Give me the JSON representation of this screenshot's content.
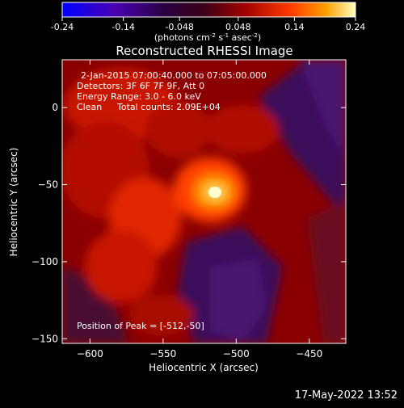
{
  "colorbar": {
    "min": -0.24,
    "max": 0.24,
    "tick_labels": [
      "-0.24",
      "-0.14",
      "-0.048",
      "0.048",
      "0.14",
      "0.24"
    ],
    "tick_values": [
      -0.24,
      -0.14,
      -0.048,
      0.048,
      0.14,
      0.24
    ],
    "unit_label": "(photons cm",
    "unit_exp1": "-2",
    "unit_mid": " s",
    "unit_exp2": "-1",
    "unit_mid2": " asec",
    "unit_exp3": "-2",
    "unit_end": ")"
  },
  "info": {
    "time_range": "2-Jan-2015 07:00:40.000 to 07:05:00.000",
    "detectors": "Detectors: 3F 6F 7F 9F, Att 0",
    "energy": "Energy Range: 3.0 - 6.0 keV",
    "algorithm": "Clean",
    "counts": "Total counts: 2.09E+04",
    "peak": "Position of Peak = [-512,-50]"
  },
  "footer_date": "17-May-2022 13:52",
  "chart_data": {
    "type": "heatmap",
    "title": "Reconstructed RHESSI Image",
    "xlabel": "Heliocentric X (arcsec)",
    "ylabel": "Heliocentric Y (arcsec)",
    "xlim": [
      -619,
      -425
    ],
    "ylim": [
      -153,
      31
    ],
    "x_ticks": [
      -600,
      -550,
      -500,
      -450
    ],
    "y_ticks": [
      0,
      -50,
      -100,
      -150
    ],
    "x_tick_labels": [
      "−600",
      "−550",
      "−500",
      "−450"
    ],
    "y_tick_labels": [
      "0",
      "−50",
      "−100",
      "−150"
    ],
    "peak": {
      "x": -512,
      "y": -50
    },
    "colormap": "hot",
    "value_range": [
      -0.24,
      0.24
    ]
  }
}
